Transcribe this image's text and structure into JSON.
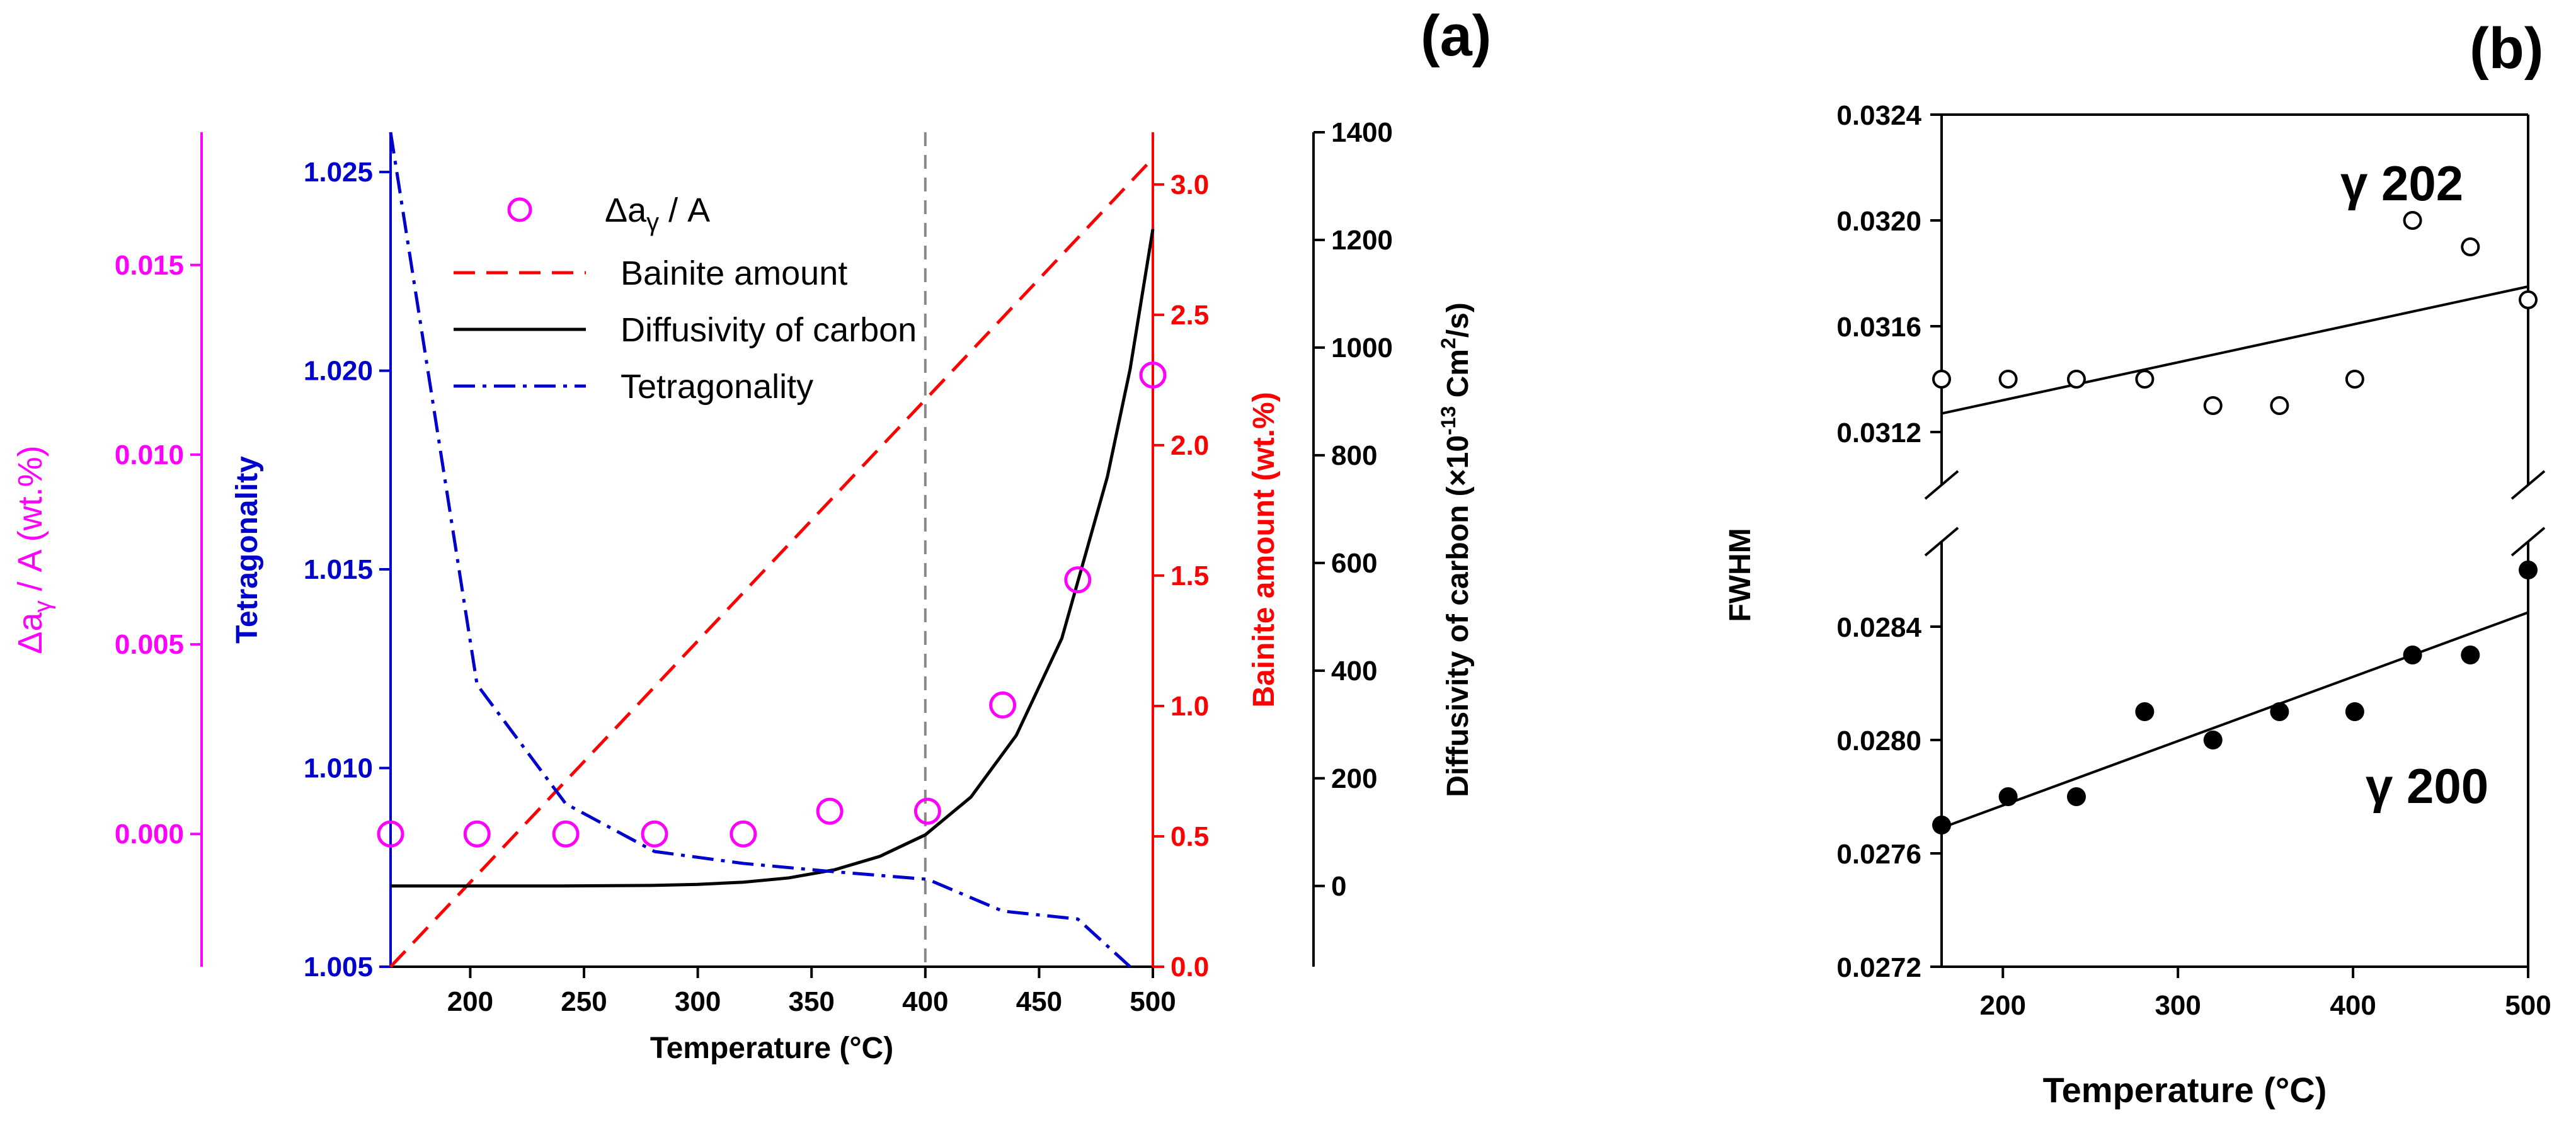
{
  "colors": {
    "magenta": "#ff00ff",
    "blue": "#0000cc",
    "red": "#ff0000",
    "black": "#000000",
    "grey": "#888888"
  },
  "chart_data": [
    {
      "panel": "(a)",
      "type": "line",
      "xlabel": "Temperature (°C)",
      "xlim": [
        165,
        500
      ],
      "xticks": [
        200,
        250,
        300,
        350,
        400,
        450,
        500
      ],
      "vline": 400,
      "axes": {
        "magenta": {
          "label_main": "Δa",
          "label_sub": "γ",
          "label_rest": " / A (wt.%)",
          "ylim": [
            -0.0035,
            0.0185
          ],
          "ticks": [
            "0.000",
            "0.005",
            "0.010",
            "0.015"
          ]
        },
        "tetragonality": {
          "label": "Tetragonality",
          "ylim": [
            1.005,
            1.026
          ],
          "ticks": [
            "1.005",
            "1.010",
            "1.015",
            "1.020",
            "1.025"
          ]
        },
        "bainite": {
          "label": "Bainite amount (wt.%)",
          "ylim": [
            0,
            3.2
          ],
          "ticks": [
            "0.0",
            "0.5",
            "1.0",
            "1.5",
            "2.0",
            "2.5",
            "3.0"
          ]
        },
        "diffusivity": {
          "label_pre": "Diffusivity of carbon (×10",
          "label_exp1": "-13",
          "label_mid": " Cm",
          "label_exp2": "2",
          "label_post": "/s)",
          "ylim": [
            -150,
            1400
          ],
          "ticks": [
            "0",
            "200",
            "400",
            "600",
            "800",
            "1000",
            "1200",
            "1400"
          ]
        }
      },
      "legend": [
        {
          "name": "Δa",
          "sub": "γ",
          "rest": " / A",
          "style": "circle-magenta"
        },
        {
          "name": "Bainite amount",
          "style": "dashed-red"
        },
        {
          "name": "Diffusivity of carbon",
          "style": "solid-black"
        },
        {
          "name": "Tetragonality",
          "style": "dashdot-blue"
        }
      ],
      "series": [
        {
          "name": "Δaγ / A",
          "axis": "magenta",
          "x": [
            165,
            203,
            242,
            281,
            320,
            358,
            401,
            434,
            467,
            500
          ],
          "y": [
            0.0,
            0.0,
            0.0,
            0.0,
            0.0,
            0.0006,
            0.0006,
            0.0034,
            0.0067,
            0.0121
          ]
        },
        {
          "name": "Bainite amount",
          "axis": "bainite",
          "x": [
            165,
            500
          ],
          "y": [
            0.0,
            3.1
          ]
        },
        {
          "name": "Diffusivity of carbon",
          "axis": "diffusivity",
          "x": [
            165,
            200,
            240,
            280,
            300,
            320,
            340,
            360,
            380,
            400,
            420,
            440,
            460,
            480,
            490,
            500
          ],
          "y": [
            0,
            0,
            0,
            1,
            3,
            7,
            15,
            30,
            55,
            95,
            165,
            280,
            460,
            760,
            960,
            1220
          ]
        },
        {
          "name": "Tetragonality",
          "axis": "tetragonality",
          "x": [
            165,
            203,
            242,
            281,
            320,
            358,
            401,
            434,
            467,
            490
          ],
          "y": [
            1.026,
            1.0121,
            1.0091,
            1.0079,
            1.0076,
            1.0074,
            1.0072,
            1.0064,
            1.0062,
            1.005
          ]
        }
      ]
    },
    {
      "panel": "(b)",
      "type": "scatter",
      "xlabel": "Temperature (°C)",
      "ylabel": "FWHM",
      "xlim": [
        165,
        500
      ],
      "xticks": [
        200,
        300,
        400,
        500
      ],
      "upper_ylim": [
        0.031,
        0.0324
      ],
      "upper_ticks": [
        "0.0312",
        "0.0316",
        "0.0320",
        "0.0324"
      ],
      "lower_ylim": [
        0.0272,
        0.0287
      ],
      "lower_ticks": [
        "0.0272",
        "0.0276",
        "0.0280",
        "0.0284"
      ],
      "series": [
        {
          "name": "γ 202",
          "marker": "open-circle",
          "x": [
            165,
            203,
            242,
            281,
            320,
            358,
            401,
            434,
            467,
            500
          ],
          "y": [
            0.0314,
            0.0314,
            0.0314,
            0.0314,
            0.0313,
            0.0313,
            0.0314,
            0.032,
            0.0319,
            0.0317
          ],
          "fit": [
            [
              165,
              0.03127
            ],
            [
              500,
              0.03175
            ]
          ]
        },
        {
          "name": "γ 200",
          "marker": "filled-circle",
          "x": [
            165,
            203,
            242,
            281,
            320,
            358,
            401,
            434,
            467,
            500
          ],
          "y": [
            0.0277,
            0.0278,
            0.0278,
            0.0281,
            0.028,
            0.0281,
            0.0281,
            0.0283,
            0.0283,
            0.0286
          ],
          "fit": [
            [
              165,
              0.02769
            ],
            [
              500,
              0.02845
            ]
          ]
        }
      ]
    }
  ]
}
